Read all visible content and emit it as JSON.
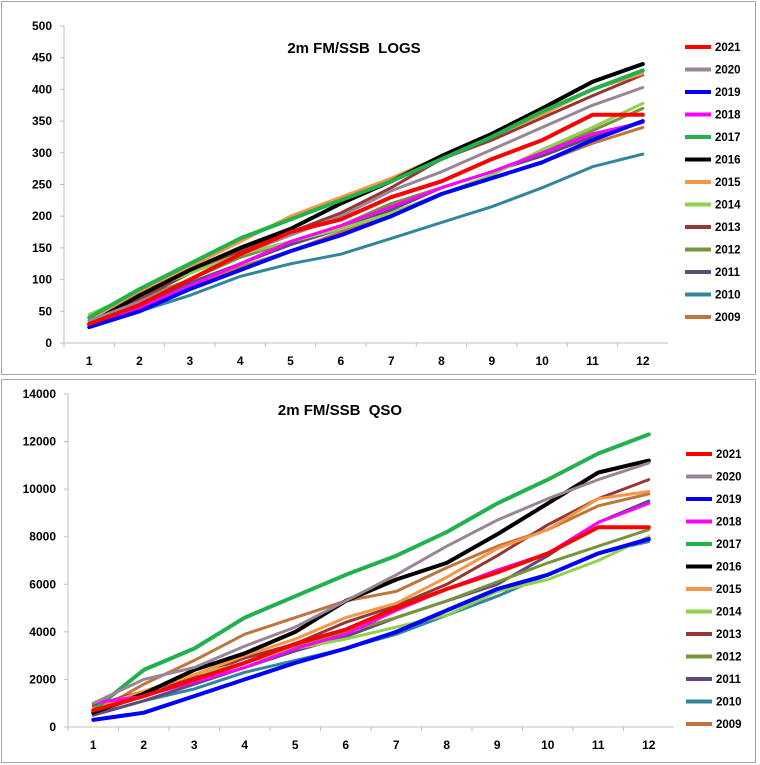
{
  "chart_data": [
    {
      "type": "line",
      "title": "2m FM/SSB  LOGS",
      "xlabel": "",
      "ylabel": "",
      "categories": [
        "1",
        "2",
        "3",
        "4",
        "5",
        "6",
        "7",
        "8",
        "9",
        "10",
        "11",
        "12"
      ],
      "ylim": [
        0,
        500
      ],
      "yticks": [
        "0",
        "50",
        "100",
        "150",
        "200",
        "250",
        "300",
        "350",
        "400",
        "450",
        "500"
      ],
      "grid": false,
      "legend": "right",
      "series": [
        {
          "name": "2021",
          "color": "#ff0000",
          "values": [
            30,
            60,
            100,
            140,
            175,
            195,
            230,
            255,
            290,
            320,
            360,
            360
          ]
        },
        {
          "name": "2020",
          "color": "#9a8595",
          "values": [
            35,
            65,
            100,
            140,
            170,
            200,
            240,
            270,
            305,
            340,
            375,
            403
          ]
        },
        {
          "name": "2019",
          "color": "#0000ff",
          "values": [
            25,
            50,
            85,
            115,
            145,
            170,
            200,
            235,
            260,
            285,
            320,
            350
          ]
        },
        {
          "name": "2018",
          "color": "#ff00ff",
          "values": [
            30,
            55,
            90,
            125,
            160,
            185,
            215,
            245,
            270,
            300,
            330,
            348
          ]
        },
        {
          "name": "2017",
          "color": "#22b14c",
          "values": [
            40,
            85,
            125,
            165,
            195,
            225,
            255,
            290,
            325,
            365,
            400,
            430
          ]
        },
        {
          "name": "2016",
          "color": "#000000",
          "values": [
            30,
            75,
            115,
            150,
            180,
            220,
            255,
            295,
            330,
            370,
            412,
            440
          ]
        },
        {
          "name": "2015",
          "color": "#f79646",
          "values": [
            35,
            80,
            120,
            160,
            200,
            230,
            260,
            295,
            325,
            360,
            400,
            425
          ]
        },
        {
          "name": "2014",
          "color": "#92d050",
          "values": [
            45,
            80,
            110,
            140,
            160,
            180,
            205,
            235,
            265,
            305,
            340,
            378
          ]
        },
        {
          "name": "2013",
          "color": "#953735",
          "values": [
            35,
            70,
            110,
            145,
            175,
            205,
            245,
            290,
            320,
            355,
            390,
            423
          ]
        },
        {
          "name": "2012",
          "color": "#77933c",
          "values": [
            35,
            70,
            100,
            135,
            160,
            185,
            220,
            245,
            270,
            300,
            335,
            370
          ]
        },
        {
          "name": "2011",
          "color": "#604a7b",
          "values": [
            30,
            60,
            95,
            125,
            155,
            180,
            210,
            245,
            270,
            295,
            325,
            348
          ]
        },
        {
          "name": "2010",
          "color": "#31859c",
          "values": [
            30,
            50,
            75,
            105,
            125,
            140,
            165,
            190,
            215,
            245,
            278,
            298
          ]
        },
        {
          "name": "2009",
          "color": "#c0743e",
          "values": [
            30,
            60,
            90,
            120,
            145,
            175,
            205,
            235,
            260,
            285,
            315,
            340
          ]
        }
      ]
    },
    {
      "type": "line",
      "title": "2m FM/SSB  QSO",
      "xlabel": "",
      "ylabel": "",
      "categories": [
        "1",
        "2",
        "3",
        "4",
        "5",
        "6",
        "7",
        "8",
        "9",
        "10",
        "11",
        "12"
      ],
      "ylim": [
        0,
        14000
      ],
      "yticks": [
        "0",
        "2000",
        "4000",
        "6000",
        "8000",
        "10000",
        "12000",
        "14000"
      ],
      "grid": false,
      "legend": "right",
      "series": [
        {
          "name": "2021",
          "color": "#ff0000",
          "values": [
            700,
            1300,
            2000,
            2700,
            3500,
            4100,
            5000,
            5800,
            6500,
            7300,
            8400,
            8400
          ]
        },
        {
          "name": "2020",
          "color": "#9a8595",
          "values": [
            1000,
            2000,
            2500,
            3400,
            4200,
            5300,
            6400,
            7600,
            8700,
            9600,
            10400,
            11100
          ]
        },
        {
          "name": "2019",
          "color": "#0000ff",
          "values": [
            300,
            600,
            1300,
            2000,
            2700,
            3300,
            4000,
            4900,
            5800,
            6400,
            7300,
            7900
          ]
        },
        {
          "name": "2018",
          "color": "#ff00ff",
          "values": [
            1000,
            1300,
            1900,
            2500,
            3300,
            3900,
            4900,
            5800,
            6600,
            7300,
            8600,
            9400
          ]
        },
        {
          "name": "2017",
          "color": "#22b14c",
          "values": [
            700,
            2400,
            3300,
            4600,
            5500,
            6400,
            7200,
            8200,
            9400,
            10400,
            11500,
            12300
          ]
        },
        {
          "name": "2016",
          "color": "#000000",
          "values": [
            600,
            1400,
            2400,
            3100,
            4000,
            5300,
            6200,
            6900,
            8100,
            9400,
            10700,
            11200
          ]
        },
        {
          "name": "2015",
          "color": "#f79646",
          "values": [
            800,
            1500,
            2200,
            3000,
            3700,
            4600,
            5200,
            6300,
            7500,
            8300,
            9600,
            9900
          ]
        },
        {
          "name": "2014",
          "color": "#92d050",
          "values": [
            800,
            1500,
            2200,
            2700,
            3300,
            3700,
            4200,
            4700,
            5700,
            6200,
            7000,
            8000
          ]
        },
        {
          "name": "2013",
          "color": "#953735",
          "values": [
            900,
            1500,
            2100,
            2900,
            3500,
            4400,
            5100,
            6000,
            7200,
            8500,
            9600,
            10400
          ]
        },
        {
          "name": "2012",
          "color": "#77933c",
          "values": [
            600,
            1300,
            2000,
            2700,
            3400,
            4000,
            4600,
            5300,
            6100,
            6900,
            7600,
            8300
          ]
        },
        {
          "name": "2011",
          "color": "#604a7b",
          "values": [
            500,
            1100,
            1800,
            2500,
            3200,
            3800,
            4600,
            5300,
            6000,
            7200,
            8600,
            9500
          ]
        },
        {
          "name": "2010",
          "color": "#31859c",
          "values": [
            500,
            1100,
            1600,
            2300,
            2800,
            3300,
            3900,
            4700,
            5500,
            6400,
            7300,
            7800
          ]
        },
        {
          "name": "2009",
          "color": "#c0743e",
          "values": [
            600,
            1800,
            2800,
            3900,
            4600,
            5300,
            5700,
            6700,
            7600,
            8300,
            9300,
            9800
          ]
        }
      ]
    }
  ]
}
